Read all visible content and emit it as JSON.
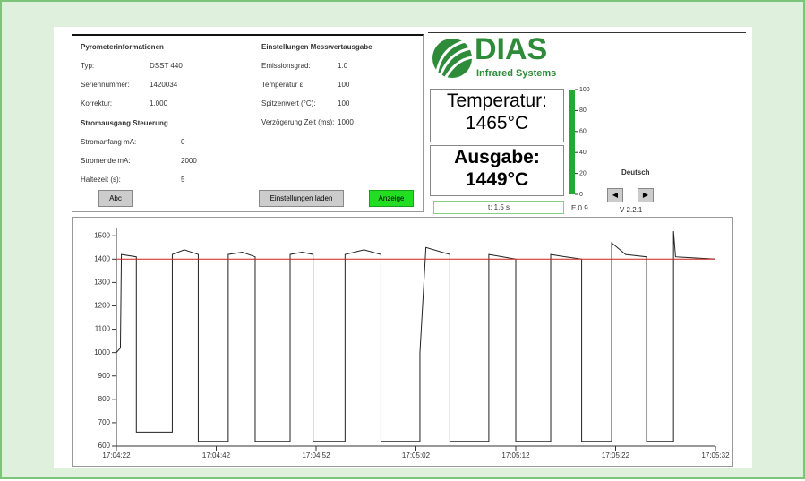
{
  "panel": {
    "title": "Pyrometerinformationen",
    "rows": [
      {
        "label": "Typ:",
        "value": "DSST 440"
      },
      {
        "label": "Seriennummer:",
        "value": "1420034"
      },
      {
        "label": "Korrektur:",
        "value": "1.000"
      }
    ],
    "section": "Stromausgang Steuerung",
    "rows2": [
      {
        "label": "Stromanfang mA:",
        "value": "0"
      },
      {
        "label": "Stromende mA:",
        "value": "2000"
      },
      {
        "label": "Haltezeit (s):",
        "value": "5"
      }
    ],
    "title2": "Einstellungen Messwertausgabe",
    "rows3": [
      {
        "label": "Emissionsgrad:",
        "value": "1.0"
      },
      {
        "label": "Temperatur ε:",
        "value": "100"
      },
      {
        "label": "Spitzenwert (°C):",
        "value": "100"
      },
      {
        "label": "Verzögerung Zeit (ms):",
        "value": "1000"
      }
    ],
    "buttons": [
      "Abc",
      "Einstellungen laden",
      "Anzeige"
    ]
  },
  "logo": {
    "name": "DIAS",
    "tagline": "Infrared Systems"
  },
  "readouts": [
    {
      "label": "Temperatur:",
      "value": "1465°C"
    },
    {
      "label": "Ausgabe:",
      "value": "1449°C"
    }
  ],
  "status": "t: 1.5 s",
  "emission": "E 0.9",
  "language": "Deutsch",
  "version": "V 2.2.1",
  "gauge": {
    "value": 100,
    "ticks": [
      0,
      20,
      40,
      60,
      80,
      100
    ],
    "lim": [
      0,
      100
    ]
  },
  "chart_data": {
    "type": "line",
    "xlim": [
      0,
      60
    ],
    "xticks": [
      {
        "value": 0,
        "label": "17:04:22"
      },
      {
        "value": 10,
        "label": "17:04:42"
      },
      {
        "value": 20,
        "label": "17:04:52"
      },
      {
        "value": 30,
        "label": "17:05:02"
      },
      {
        "value": 40,
        "label": "17:05:12"
      },
      {
        "value": 50,
        "label": "17:05:22"
      },
      {
        "value": 60,
        "label": "17:05:32"
      }
    ],
    "ylim": [
      600,
      1520
    ],
    "yticks": [
      600,
      700,
      800,
      900,
      1000,
      1100,
      1200,
      1300,
      1400,
      1500
    ],
    "series": [
      {
        "color": "#222222",
        "x": [
          0,
          0.4,
          0.5,
          2.0,
          2.0,
          5.6,
          5.6,
          6.8,
          8.2,
          8.2,
          11.2,
          11.2,
          12.6,
          13.9,
          13.9,
          17.4,
          17.4,
          18.6,
          19.7,
          19.7,
          22.9,
          22.9,
          24.8,
          26.5,
          26.5,
          30.4,
          30.4,
          31.0,
          33.4,
          33.4,
          37.3,
          37.3,
          38.7,
          40.0,
          40.0,
          43.5,
          43.5,
          45.0,
          46.6,
          46.6,
          49.6,
          49.6,
          51.0,
          53.1,
          53.1,
          55.8,
          55.8,
          56.0,
          60
        ],
        "values": [
          1000,
          1020,
          1420,
          1410,
          660,
          660,
          1420,
          1440,
          1420,
          620,
          620,
          1420,
          1430,
          1410,
          620,
          620,
          1420,
          1430,
          1420,
          620,
          620,
          1420,
          1440,
          1420,
          620,
          620,
          1000,
          1450,
          1420,
          620,
          620,
          1420,
          1410,
          1400,
          620,
          620,
          1420,
          1410,
          1400,
          620,
          620,
          1470,
          1420,
          1410,
          620,
          620,
          1520,
          1410,
          1400
        ]
      },
      {
        "color": "#cc2222",
        "x": [
          0,
          60
        ],
        "values": [
          1400,
          1400
        ]
      }
    ]
  }
}
